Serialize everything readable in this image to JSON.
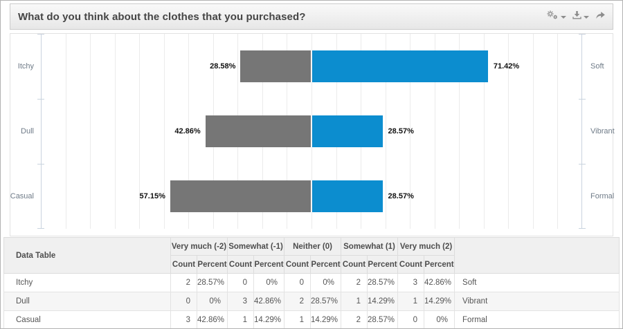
{
  "header": {
    "title": "What do you think about the clothes that you purchased?",
    "tools": [
      {
        "name": "settings",
        "icon": "gears-icon",
        "has_caret": true
      },
      {
        "name": "download",
        "icon": "download-icon",
        "has_caret": true
      },
      {
        "name": "share",
        "icon": "share-icon",
        "has_caret": false
      }
    ]
  },
  "chart_data": {
    "type": "bar",
    "subtype": "diverging-horizontal-stacked",
    "title": "What do you think about the clothes that you purchased?",
    "axis": {
      "min_pct": -110,
      "max_pct": 110,
      "grid_step_pct": 10,
      "grid": true
    },
    "colors": {
      "negative_bar": "#767676",
      "positive_bar": "#0c8dcf"
    },
    "rows": [
      {
        "left_label": "Itchy",
        "right_label": "Soft",
        "negative_value": 28.58,
        "negative_display": "28.58%",
        "positive_value": 71.42,
        "positive_display": "71.42%"
      },
      {
        "left_label": "Dull",
        "right_label": "Vibrant",
        "negative_value": 42.86,
        "negative_display": "42.86%",
        "positive_value": 28.57,
        "positive_display": "28.57%"
      },
      {
        "left_label": "Casual",
        "right_label": "Formal",
        "negative_value": 57.15,
        "negative_display": "57.15%",
        "positive_value": 28.57,
        "positive_display": "28.57%"
      }
    ]
  },
  "table": {
    "corner_label": "Data Table",
    "groups": [
      "Very much (-2)",
      "Somewhat (-1)",
      "Neither (0)",
      "Somewhat (1)",
      "Very much (2)"
    ],
    "sub_headers": [
      "Count",
      "Percent"
    ],
    "rows": [
      {
        "label": "Itchy",
        "cells": [
          "2",
          "28.57%",
          "0",
          "0%",
          "0",
          "0%",
          "2",
          "28.57%",
          "3",
          "42.86%"
        ],
        "right_label": "Soft"
      },
      {
        "label": "Dull",
        "cells": [
          "0",
          "0%",
          "3",
          "42.86%",
          "2",
          "28.57%",
          "1",
          "14.29%",
          "1",
          "14.29%"
        ],
        "right_label": "Vibrant"
      },
      {
        "label": "Casual",
        "cells": [
          "3",
          "42.86%",
          "1",
          "14.29%",
          "1",
          "14.29%",
          "2",
          "28.57%",
          "0",
          "0%"
        ],
        "right_label": "Formal"
      }
    ]
  }
}
